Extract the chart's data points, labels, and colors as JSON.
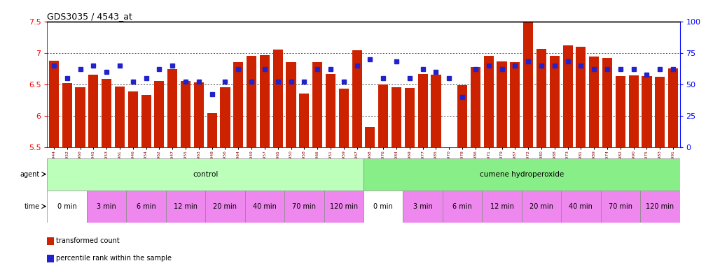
{
  "title": "GDS3035 / 4543_at",
  "ylim": [
    5.5,
    7.5
  ],
  "bar_color": "#cc2200",
  "dot_color": "#2222cc",
  "samples": [
    "GSM184944",
    "GSM184952",
    "GSM184960",
    "GSM184945",
    "GSM184953",
    "GSM184961",
    "GSM184946",
    "GSM184954",
    "GSM184962",
    "GSM184947",
    "GSM184955",
    "GSM184963",
    "GSM184948",
    "GSM184956",
    "GSM184964",
    "GSM184949",
    "GSM184957",
    "GSM184965",
    "GSM184950",
    "GSM184958",
    "GSM184966",
    "GSM184951",
    "GSM184959",
    "GSM184967",
    "GSM184968",
    "GSM184976",
    "GSM184984",
    "GSM184969",
    "GSM184977",
    "GSM184985",
    "GSM184970",
    "GSM184978",
    "GSM184986",
    "GSM184971",
    "GSM184979",
    "GSM184987",
    "GSM184972",
    "GSM184980",
    "GSM184988",
    "GSM184973",
    "GSM184981",
    "GSM184989",
    "GSM184974",
    "GSM184982",
    "GSM184990",
    "GSM184975",
    "GSM184983",
    "GSM184991"
  ],
  "bar_values": [
    6.88,
    6.52,
    6.46,
    6.65,
    6.59,
    6.47,
    6.39,
    6.33,
    6.56,
    6.74,
    6.55,
    6.53,
    6.05,
    6.46,
    6.85,
    6.95,
    6.96,
    7.05,
    6.85,
    6.36,
    6.85,
    6.67,
    6.43,
    7.04,
    5.82,
    6.5,
    6.45,
    6.44,
    6.67,
    6.65,
    5.42,
    6.49,
    6.78,
    6.95,
    6.87,
    6.85,
    7.63,
    7.06,
    6.95,
    7.12,
    7.1,
    6.94,
    6.92,
    6.63,
    6.64,
    6.63,
    6.62,
    6.75
  ],
  "dot_values_pct": [
    65,
    55,
    62,
    65,
    60,
    65,
    52,
    55,
    62,
    65,
    52,
    52,
    42,
    52,
    62,
    52,
    62,
    52,
    52,
    52,
    62,
    62,
    52,
    65,
    70,
    55,
    68,
    55,
    62,
    60,
    55,
    40,
    62,
    65,
    62,
    65,
    68,
    65,
    65,
    68,
    65,
    62,
    62,
    62,
    62,
    58,
    62,
    62
  ],
  "agent_groups": [
    {
      "label": "control",
      "start": 0,
      "end": 24,
      "color": "#bbffbb"
    },
    {
      "label": "cumene hydroperoxide",
      "start": 24,
      "end": 48,
      "color": "#88ee88"
    }
  ],
  "time_groups": [
    {
      "label": "0 min",
      "start": 0,
      "end": 3,
      "color": "#ffffff"
    },
    {
      "label": "3 min",
      "start": 3,
      "end": 6,
      "color": "#ee88ee"
    },
    {
      "label": "6 min",
      "start": 6,
      "end": 9,
      "color": "#ee88ee"
    },
    {
      "label": "12 min",
      "start": 9,
      "end": 12,
      "color": "#ee88ee"
    },
    {
      "label": "20 min",
      "start": 12,
      "end": 15,
      "color": "#ee88ee"
    },
    {
      "label": "40 min",
      "start": 15,
      "end": 18,
      "color": "#ee88ee"
    },
    {
      "label": "70 min",
      "start": 18,
      "end": 21,
      "color": "#ee88ee"
    },
    {
      "label": "120 min",
      "start": 21,
      "end": 24,
      "color": "#ee88ee"
    },
    {
      "label": "0 min",
      "start": 24,
      "end": 27,
      "color": "#ffffff"
    },
    {
      "label": "3 min",
      "start": 27,
      "end": 30,
      "color": "#ee88ee"
    },
    {
      "label": "6 min",
      "start": 30,
      "end": 33,
      "color": "#ee88ee"
    },
    {
      "label": "12 min",
      "start": 33,
      "end": 36,
      "color": "#ee88ee"
    },
    {
      "label": "20 min",
      "start": 36,
      "end": 39,
      "color": "#ee88ee"
    },
    {
      "label": "40 min",
      "start": 39,
      "end": 42,
      "color": "#ee88ee"
    },
    {
      "label": "70 min",
      "start": 42,
      "end": 45,
      "color": "#ee88ee"
    },
    {
      "label": "120 min",
      "start": 45,
      "end": 48,
      "color": "#ee88ee"
    }
  ],
  "legend_items": [
    {
      "label": "transformed count",
      "color": "#cc2200"
    },
    {
      "label": "percentile rank within the sample",
      "color": "#2222cc"
    }
  ]
}
